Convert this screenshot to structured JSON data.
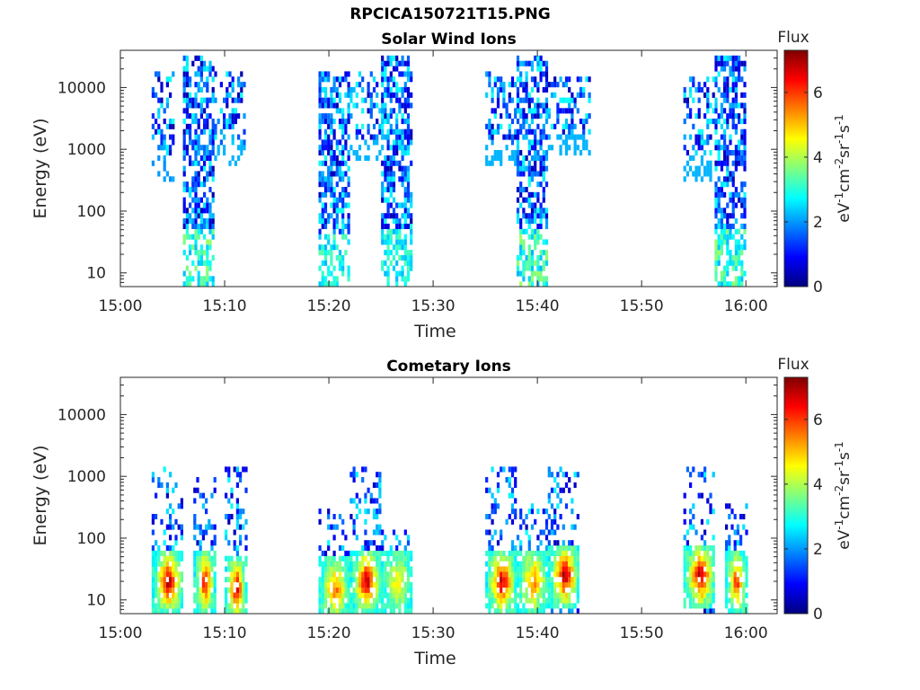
{
  "figure": {
    "title": "RPCICA150721T15.PNG"
  },
  "colorbar": {
    "label": "Flux",
    "unit_label": "eV-1cm-2sr-1s-1",
    "range": [
      0,
      7.3
    ],
    "ticks": [
      0,
      2,
      4,
      6
    ],
    "colormap": "jet"
  },
  "chart_data": [
    {
      "type": "heatmap",
      "title": "Solar Wind Ions",
      "xlabel": "Time",
      "ylabel": "Energy (eV)",
      "y_scale": "log",
      "x_ticks": [
        "15:00",
        "15:10",
        "15:20",
        "15:30",
        "15:40",
        "15:50",
        "16:00"
      ],
      "y_ticks": [
        "10",
        "100",
        "1000",
        "10000"
      ],
      "xlim": [
        "15:00",
        "16:03"
      ],
      "ylim": [
        6,
        40000
      ],
      "bursts": [
        {
          "t_start": "15:03",
          "t_end": "15:05",
          "e_min": 300,
          "e_max": 20000,
          "peak_flux": 1.5
        },
        {
          "t_start": "15:06",
          "t_end": "15:09",
          "e_min": 6,
          "e_max": 30000,
          "peak_flux": 3.5
        },
        {
          "t_start": "15:09",
          "t_end": "15:12",
          "e_min": 500,
          "e_max": 20000,
          "peak_flux": 1.8
        },
        {
          "t_start": "15:19",
          "t_end": "15:22",
          "e_min": 6,
          "e_max": 20000,
          "peak_flux": 3.0
        },
        {
          "t_start": "15:22",
          "t_end": "15:25",
          "e_min": 600,
          "e_max": 20000,
          "peak_flux": 1.8
        },
        {
          "t_start": "15:25",
          "t_end": "15:28",
          "e_min": 6,
          "e_max": 30000,
          "peak_flux": 3.0
        },
        {
          "t_start": "15:35",
          "t_end": "15:38",
          "e_min": 500,
          "e_max": 20000,
          "peak_flux": 1.8
        },
        {
          "t_start": "15:38",
          "t_end": "15:41",
          "e_min": 6,
          "e_max": 30000,
          "peak_flux": 3.5
        },
        {
          "t_start": "15:41",
          "t_end": "15:45",
          "e_min": 800,
          "e_max": 15000,
          "peak_flux": 1.8
        },
        {
          "t_start": "15:54",
          "t_end": "15:57",
          "e_min": 300,
          "e_max": 15000,
          "peak_flux": 1.8
        },
        {
          "t_start": "15:57",
          "t_end": "16:00",
          "e_min": 6,
          "e_max": 30000,
          "peak_flux": 3.5
        }
      ]
    },
    {
      "type": "heatmap",
      "title": "Cometary Ions",
      "xlabel": "Time",
      "ylabel": "Energy (eV)",
      "y_scale": "log",
      "x_ticks": [
        "15:00",
        "15:10",
        "15:20",
        "15:30",
        "15:40",
        "15:50",
        "16:00"
      ],
      "y_ticks": [
        "10",
        "100",
        "1000",
        "10000"
      ],
      "xlim": [
        "15:00",
        "16:03"
      ],
      "ylim": [
        6,
        40000
      ],
      "bursts": [
        {
          "t_start": "15:03",
          "t_end": "15:06",
          "e_min": 6,
          "e_max": 1500,
          "peak_flux": 7.0,
          "peak_energy": 20
        },
        {
          "t_start": "15:07",
          "t_end": "15:09",
          "e_min": 6,
          "e_max": 1000,
          "peak_flux": 6.5,
          "peak_energy": 20
        },
        {
          "t_start": "15:10",
          "t_end": "15:12",
          "e_min": 6,
          "e_max": 1500,
          "peak_flux": 7.0,
          "peak_energy": 15
        },
        {
          "t_start": "15:19",
          "t_end": "15:22",
          "e_min": 6,
          "e_max": 300,
          "peak_flux": 5.5,
          "peak_energy": 15
        },
        {
          "t_start": "15:22",
          "t_end": "15:25",
          "e_min": 6,
          "e_max": 1500,
          "peak_flux": 7.0,
          "peak_energy": 20
        },
        {
          "t_start": "15:25",
          "t_end": "15:28",
          "e_min": 6,
          "e_max": 150,
          "peak_flux": 4.5,
          "peak_energy": 20
        },
        {
          "t_start": "15:35",
          "t_end": "15:38",
          "e_min": 6,
          "e_max": 1500,
          "peak_flux": 7.0,
          "peak_energy": 20
        },
        {
          "t_start": "15:38",
          "t_end": "15:41",
          "e_min": 6,
          "e_max": 400,
          "peak_flux": 5.5,
          "peak_energy": 20
        },
        {
          "t_start": "15:41",
          "t_end": "15:44",
          "e_min": 6,
          "e_max": 1500,
          "peak_flux": 7.0,
          "peak_energy": 25
        },
        {
          "t_start": "15:54",
          "t_end": "15:57",
          "e_min": 6,
          "e_max": 1500,
          "peak_flux": 7.0,
          "peak_energy": 25
        },
        {
          "t_start": "15:58",
          "t_end": "16:00",
          "e_min": 6,
          "e_max": 400,
          "peak_flux": 6.0,
          "peak_energy": 20
        }
      ]
    }
  ]
}
